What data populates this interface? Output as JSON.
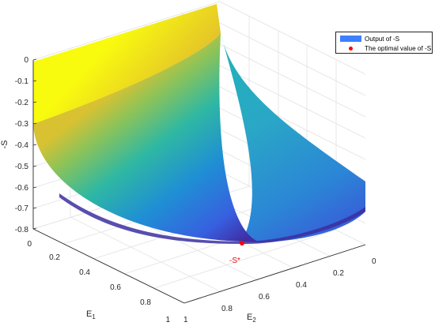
{
  "chart_data": {
    "type": "surface",
    "title": "",
    "x_label": "E",
    "x_label_sub": "1",
    "y_label": "E",
    "y_label_sub": "2",
    "z_label": "-S",
    "x_range": [
      0,
      1
    ],
    "y_range": [
      0,
      1
    ],
    "z_range": [
      -0.8,
      0
    ],
    "x_ticks": [
      "0",
      "0.2",
      "0.4",
      "0.6",
      "0.8",
      "1"
    ],
    "y_ticks": [
      "0",
      "0.2",
      "0.4",
      "0.6",
      "0.8",
      "1"
    ],
    "z_ticks": [
      "0",
      "-0.1",
      "-0.2",
      "-0.3",
      "-0.4",
      "-0.5",
      "-0.6",
      "-0.7",
      "-0.8"
    ],
    "grid": true,
    "colormap": "parula",
    "surface_samples": [
      {
        "e1": 0.0,
        "e2": 0.0,
        "minus_s": 0.0
      },
      {
        "e1": 0.0,
        "e2": 0.9,
        "minus_s": -0.3
      },
      {
        "e1": 0.9,
        "e2": 0.0,
        "minus_s": -0.6
      },
      {
        "e1": 0.9,
        "e2": 0.9,
        "minus_s": -0.8
      }
    ],
    "optimal_point": {
      "e1": 0.75,
      "e2": 0.75,
      "minus_s": -0.8
    },
    "annotation": "-S*",
    "legend_position": "top-right",
    "legend": [
      {
        "label": "Output of -S",
        "kind": "patch",
        "color": "#3d7fff"
      },
      {
        "label": "The optimal value of -S",
        "kind": "marker",
        "color": "#ff0000"
      }
    ]
  }
}
